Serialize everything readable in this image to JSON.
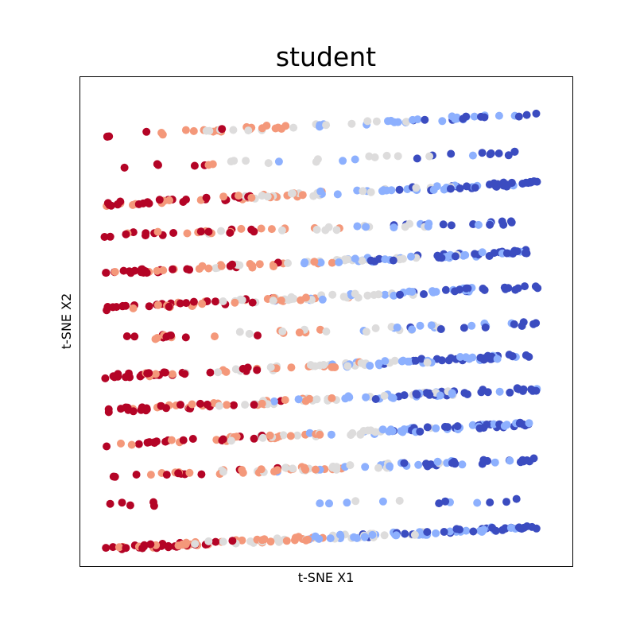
{
  "chart_data": {
    "type": "scatter",
    "title": "student",
    "xlabel": "t-SNE X1",
    "ylabel": "t-SNE X2",
    "xlim": [
      0,
      100
    ],
    "ylim": [
      0,
      100
    ],
    "ticks": "none",
    "grid": false,
    "legend": "none",
    "colormap": "coolwarm",
    "color_scale": [
      "#b40426",
      "#f4987a",
      "#dddcdc",
      "#8db0fe",
      "#3b4cc0"
    ],
    "bands": [
      {
        "y": 90.1,
        "slope": 0.05,
        "x_from": 5,
        "x_to": 93,
        "count": 68
      },
      {
        "y": 83.0,
        "slope": 0.035,
        "x_from": 5,
        "x_to": 89,
        "count": 32
      },
      {
        "y": 76.1,
        "slope": 0.05,
        "x_from": 5,
        "x_to": 93,
        "count": 120
      },
      {
        "y": 69.0,
        "slope": 0.03,
        "x_from": 5,
        "x_to": 93,
        "count": 62
      },
      {
        "y": 62.1,
        "slope": 0.05,
        "x_from": 5,
        "x_to": 93,
        "count": 120
      },
      {
        "y": 54.9,
        "slope": 0.05,
        "x_from": 5,
        "x_to": 93,
        "count": 112
      },
      {
        "y": 48.0,
        "slope": 0.035,
        "x_from": 5,
        "x_to": 93,
        "count": 52
      },
      {
        "y": 40.9,
        "slope": 0.05,
        "x_from": 5,
        "x_to": 93,
        "count": 118
      },
      {
        "y": 34.0,
        "slope": 0.05,
        "x_from": 5,
        "x_to": 93,
        "count": 118
      },
      {
        "y": 26.9,
        "slope": 0.05,
        "x_from": 5,
        "x_to": 93,
        "count": 108
      },
      {
        "y": 20.0,
        "slope": 0.04,
        "x_from": 5,
        "x_to": 93,
        "count": 92
      },
      {
        "y": 13.0,
        "slope": 0.01,
        "x_from": 6,
        "x_to": 93,
        "count": 18
      },
      {
        "y": 5.8,
        "slope": 0.05,
        "x_from": 5,
        "x_to": 93,
        "count": 150
      }
    ]
  }
}
